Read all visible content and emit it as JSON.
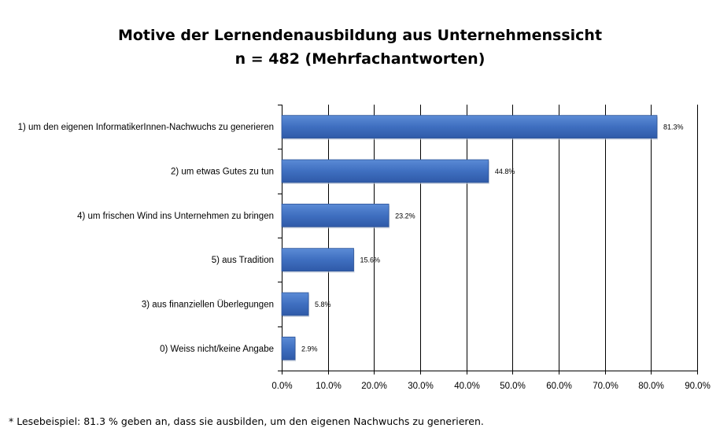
{
  "chart_data": {
    "type": "bar",
    "orientation": "horizontal",
    "title": "Motive der Lernendenausbildung aus Unternehmenssicht",
    "subtitle": "n = 482 (Mehrfachantworten)",
    "categories": [
      "1) um den eigenen InformatikerInnen-Nachwuchs zu generieren",
      "2) um etwas Gutes zu tun",
      "4) um frischen Wind ins Unternehmen zu bringen",
      "5) aus Tradition",
      "3) aus finanziellen Überlegungen",
      "0) Weiss nicht/keine Angabe"
    ],
    "values": [
      81.3,
      44.8,
      23.2,
      15.6,
      5.8,
      2.9
    ],
    "value_labels": [
      "81.3%",
      "44.8%",
      "23.2%",
      "15.6%",
      "5.8%",
      "2.9%"
    ],
    "xlim": [
      0,
      90
    ],
    "x_ticks": [
      0,
      10,
      20,
      30,
      40,
      50,
      60,
      70,
      80,
      90
    ],
    "x_tick_labels": [
      "0.0%",
      "10.0%",
      "20.0%",
      "30.0%",
      "40.0%",
      "50.0%",
      "60.0%",
      "70.0%",
      "80.0%",
      "90.0%"
    ],
    "grid": "vertical",
    "legend": "none",
    "bar_color": "#3f6fc0",
    "bar_edge_color": "#2f5597",
    "grid_color": "#000000"
  },
  "footnote": "* Lesebeispiel: 81.3 % geben an, dass sie ausbilden, um den eigenen Nachwuchs zu generieren."
}
